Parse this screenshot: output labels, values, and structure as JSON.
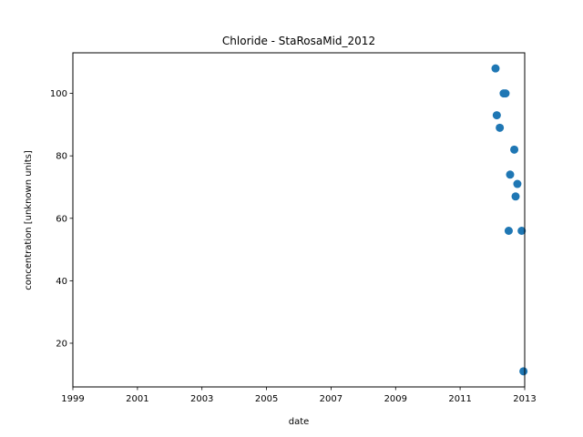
{
  "chart_data": {
    "type": "scatter",
    "title": "Chloride - StaRosaMid_2012",
    "xlabel": "date",
    "ylabel": "concentration [unknown units]",
    "x_axis_kind": "date",
    "xlim": [
      "1999-01-01",
      "2013-01-01"
    ],
    "ylim": [
      6,
      113
    ],
    "x_ticks": [
      "1999",
      "2001",
      "2003",
      "2005",
      "2007",
      "2009",
      "2011",
      "2013"
    ],
    "y_ticks": [
      20,
      40,
      60,
      80,
      100
    ],
    "grid": false,
    "color": "#1f77b4",
    "series": [
      {
        "points": [
          {
            "x": "2012-02-06",
            "y": 108
          },
          {
            "x": "2012-02-20",
            "y": 93
          },
          {
            "x": "2012-03-25",
            "y": 89
          },
          {
            "x": "2012-05-08",
            "y": 100
          },
          {
            "x": "2012-05-29",
            "y": 100
          },
          {
            "x": "2012-07-04",
            "y": 56
          },
          {
            "x": "2012-07-20",
            "y": 74
          },
          {
            "x": "2012-09-05",
            "y": 82
          },
          {
            "x": "2012-09-20",
            "y": 67
          },
          {
            "x": "2012-10-10",
            "y": 71
          },
          {
            "x": "2012-11-28",
            "y": 56
          },
          {
            "x": "2012-12-18",
            "y": 11
          }
        ]
      }
    ]
  }
}
